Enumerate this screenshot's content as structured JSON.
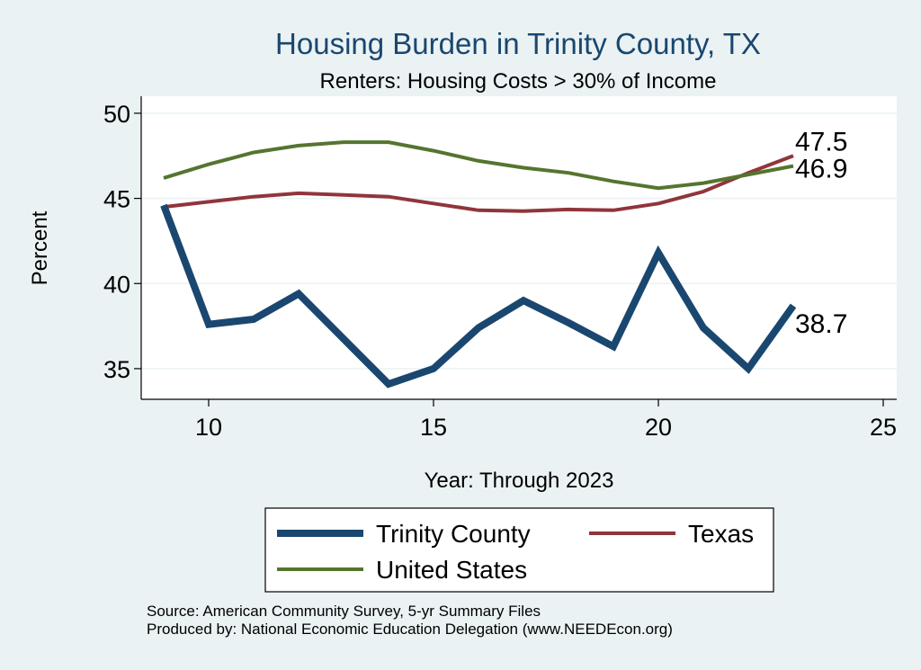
{
  "chart_data": {
    "type": "line",
    "title": "Housing Burden in Trinity County, TX",
    "subtitle": "Renters: Housing Costs > 30% of Income",
    "xlabel": "Year: Through 2023",
    "ylabel": "Percent",
    "xlim": [
      8.5,
      25.3
    ],
    "ylim": [
      33.2,
      51
    ],
    "xticks": [
      10,
      15,
      20,
      25
    ],
    "yticks": [
      35,
      40,
      45,
      50
    ],
    "grid": true,
    "legend_position": "bottom",
    "series": [
      {
        "name": "Trinity County",
        "color": "#1a476f",
        "x": [
          9,
          10,
          11,
          12,
          14,
          15,
          16,
          17,
          18,
          19,
          20,
          21,
          22,
          23
        ],
        "values": [
          44.6,
          37.6,
          37.9,
          39.4,
          34.1,
          35.0,
          37.4,
          39.0,
          37.7,
          36.3,
          41.8,
          37.4,
          35.0,
          38.7
        ],
        "end_label": "38.7"
      },
      {
        "name": "Texas",
        "color": "#90353b",
        "x": [
          9,
          10,
          11,
          12,
          13,
          14,
          15,
          16,
          17,
          18,
          19,
          20,
          21,
          22,
          23
        ],
        "values": [
          44.5,
          44.8,
          45.1,
          45.3,
          45.2,
          45.1,
          44.7,
          44.3,
          44.25,
          44.35,
          44.3,
          44.7,
          45.4,
          46.5,
          47.5
        ],
        "end_label": "47.5"
      },
      {
        "name": "United States",
        "color": "#55752f",
        "x": [
          9,
          10,
          11,
          12,
          13,
          14,
          15,
          16,
          17,
          18,
          19,
          20,
          21,
          22,
          23
        ],
        "values": [
          46.2,
          47.0,
          47.7,
          48.1,
          48.3,
          48.3,
          47.8,
          47.2,
          46.8,
          46.5,
          46.0,
          45.6,
          45.9,
          46.4,
          46.9
        ],
        "end_label": "46.9"
      }
    ]
  },
  "footer": {
    "source": "Source: American Community Survey, 5-yr Summary Files",
    "producer": "Produced by: National Economic Education Delegation (www.NEEDEcon.org)"
  }
}
